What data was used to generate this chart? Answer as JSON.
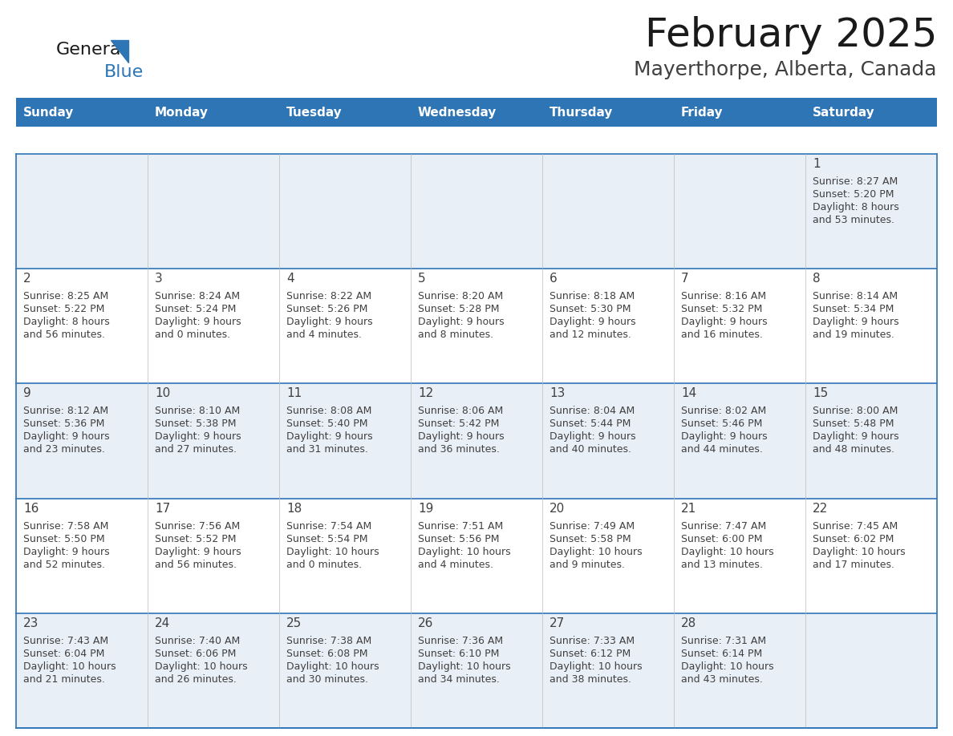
{
  "title": "February 2025",
  "subtitle": "Mayerthorpe, Alberta, Canada",
  "header_bg": "#2E75B6",
  "header_text_color": "#FFFFFF",
  "cell_bg_odd": "#E9EFF7",
  "cell_bg_even": "#FFFFFF",
  "border_color": "#2E75B6",
  "day_num_color": "#404040",
  "text_color": "#404040",
  "days_of_week": [
    "Sunday",
    "Monday",
    "Tuesday",
    "Wednesday",
    "Thursday",
    "Friday",
    "Saturday"
  ],
  "calendar_data": [
    [
      null,
      null,
      null,
      null,
      null,
      null,
      {
        "day": 1,
        "sunrise": "8:27 AM",
        "sunset": "5:20 PM",
        "daylight": "8 hours",
        "daylight2": "and 53 minutes."
      }
    ],
    [
      {
        "day": 2,
        "sunrise": "8:25 AM",
        "sunset": "5:22 PM",
        "daylight": "8 hours",
        "daylight2": "and 56 minutes."
      },
      {
        "day": 3,
        "sunrise": "8:24 AM",
        "sunset": "5:24 PM",
        "daylight": "9 hours",
        "daylight2": "and 0 minutes."
      },
      {
        "day": 4,
        "sunrise": "8:22 AM",
        "sunset": "5:26 PM",
        "daylight": "9 hours",
        "daylight2": "and 4 minutes."
      },
      {
        "day": 5,
        "sunrise": "8:20 AM",
        "sunset": "5:28 PM",
        "daylight": "9 hours",
        "daylight2": "and 8 minutes."
      },
      {
        "day": 6,
        "sunrise": "8:18 AM",
        "sunset": "5:30 PM",
        "daylight": "9 hours",
        "daylight2": "and 12 minutes."
      },
      {
        "day": 7,
        "sunrise": "8:16 AM",
        "sunset": "5:32 PM",
        "daylight": "9 hours",
        "daylight2": "and 16 minutes."
      },
      {
        "day": 8,
        "sunrise": "8:14 AM",
        "sunset": "5:34 PM",
        "daylight": "9 hours",
        "daylight2": "and 19 minutes."
      }
    ],
    [
      {
        "day": 9,
        "sunrise": "8:12 AM",
        "sunset": "5:36 PM",
        "daylight": "9 hours",
        "daylight2": "and 23 minutes."
      },
      {
        "day": 10,
        "sunrise": "8:10 AM",
        "sunset": "5:38 PM",
        "daylight": "9 hours",
        "daylight2": "and 27 minutes."
      },
      {
        "day": 11,
        "sunrise": "8:08 AM",
        "sunset": "5:40 PM",
        "daylight": "9 hours",
        "daylight2": "and 31 minutes."
      },
      {
        "day": 12,
        "sunrise": "8:06 AM",
        "sunset": "5:42 PM",
        "daylight": "9 hours",
        "daylight2": "and 36 minutes."
      },
      {
        "day": 13,
        "sunrise": "8:04 AM",
        "sunset": "5:44 PM",
        "daylight": "9 hours",
        "daylight2": "and 40 minutes."
      },
      {
        "day": 14,
        "sunrise": "8:02 AM",
        "sunset": "5:46 PM",
        "daylight": "9 hours",
        "daylight2": "and 44 minutes."
      },
      {
        "day": 15,
        "sunrise": "8:00 AM",
        "sunset": "5:48 PM",
        "daylight": "9 hours",
        "daylight2": "and 48 minutes."
      }
    ],
    [
      {
        "day": 16,
        "sunrise": "7:58 AM",
        "sunset": "5:50 PM",
        "daylight": "9 hours",
        "daylight2": "and 52 minutes."
      },
      {
        "day": 17,
        "sunrise": "7:56 AM",
        "sunset": "5:52 PM",
        "daylight": "9 hours",
        "daylight2": "and 56 minutes."
      },
      {
        "day": 18,
        "sunrise": "7:54 AM",
        "sunset": "5:54 PM",
        "daylight": "10 hours",
        "daylight2": "and 0 minutes."
      },
      {
        "day": 19,
        "sunrise": "7:51 AM",
        "sunset": "5:56 PM",
        "daylight": "10 hours",
        "daylight2": "and 4 minutes."
      },
      {
        "day": 20,
        "sunrise": "7:49 AM",
        "sunset": "5:58 PM",
        "daylight": "10 hours",
        "daylight2": "and 9 minutes."
      },
      {
        "day": 21,
        "sunrise": "7:47 AM",
        "sunset": "6:00 PM",
        "daylight": "10 hours",
        "daylight2": "and 13 minutes."
      },
      {
        "day": 22,
        "sunrise": "7:45 AM",
        "sunset": "6:02 PM",
        "daylight": "10 hours",
        "daylight2": "and 17 minutes."
      }
    ],
    [
      {
        "day": 23,
        "sunrise": "7:43 AM",
        "sunset": "6:04 PM",
        "daylight": "10 hours",
        "daylight2": "and 21 minutes."
      },
      {
        "day": 24,
        "sunrise": "7:40 AM",
        "sunset": "6:06 PM",
        "daylight": "10 hours",
        "daylight2": "and 26 minutes."
      },
      {
        "day": 25,
        "sunrise": "7:38 AM",
        "sunset": "6:08 PM",
        "daylight": "10 hours",
        "daylight2": "and 30 minutes."
      },
      {
        "day": 26,
        "sunrise": "7:36 AM",
        "sunset": "6:10 PM",
        "daylight": "10 hours",
        "daylight2": "and 34 minutes."
      },
      {
        "day": 27,
        "sunrise": "7:33 AM",
        "sunset": "6:12 PM",
        "daylight": "10 hours",
        "daylight2": "and 38 minutes."
      },
      {
        "day": 28,
        "sunrise": "7:31 AM",
        "sunset": "6:14 PM",
        "daylight": "10 hours",
        "daylight2": "and 43 minutes."
      },
      null
    ]
  ],
  "logo_color_general": "#1a1a1a",
  "logo_color_blue": "#2E75B6",
  "fig_width": 11.88,
  "fig_height": 9.18,
  "dpi": 100
}
